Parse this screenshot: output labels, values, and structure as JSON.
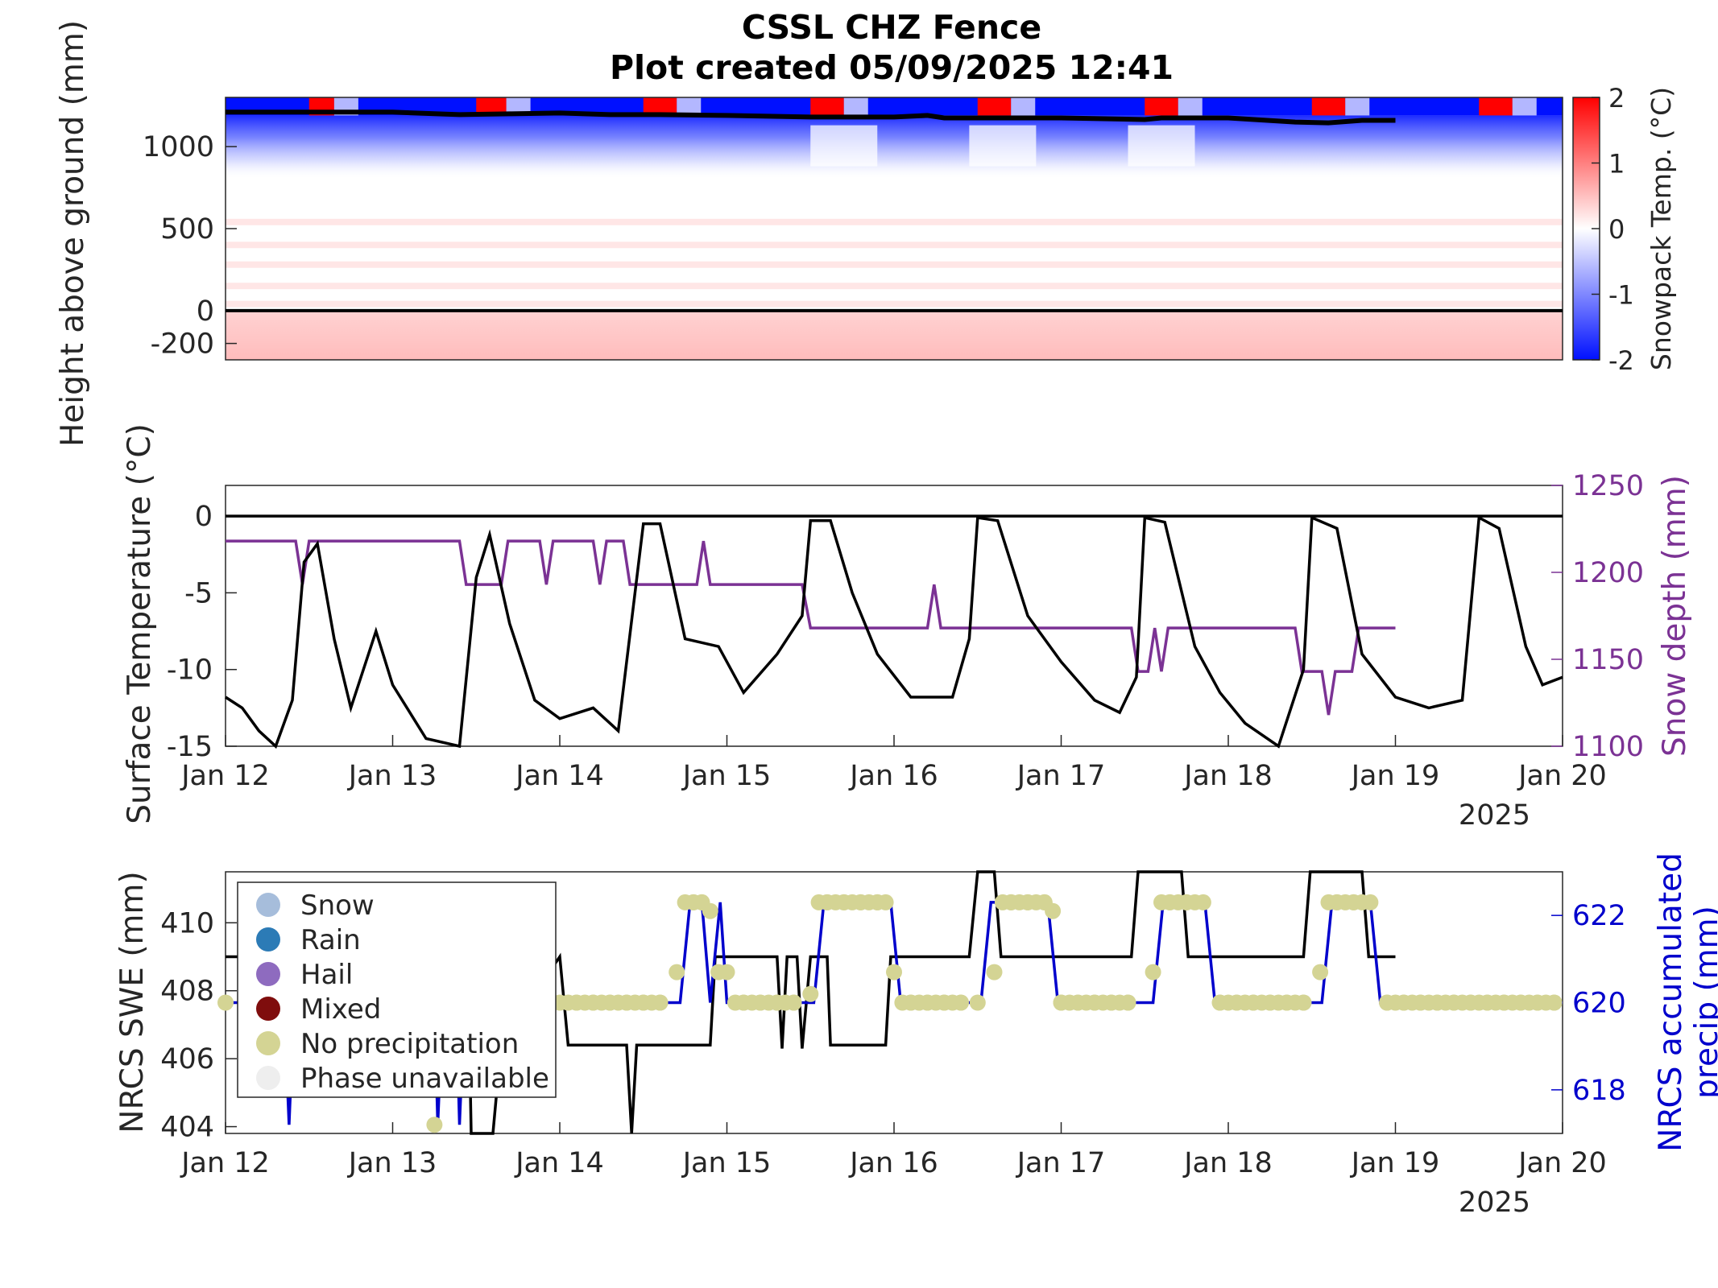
{
  "title": {
    "line1": "CSSL CHZ Fence",
    "line2": "Plot created 05/09/2025 12:41"
  },
  "colors": {
    "surface_temp": "#000000",
    "snow_depth": "#7b3294",
    "swe": "#000000",
    "accum_precip": "#0000cc",
    "accum_precip_label": "#0000cc",
    "no_precip": "#d4d494",
    "snow": "#a6bddb",
    "rain": "#2c7bb6",
    "hail": "#8e6bbf",
    "mixed": "#7f0d0d",
    "unavailable": "#eeeeee",
    "cold": "#0010ff",
    "warm": "#ff0000"
  },
  "chart_data": [
    {
      "type": "heatmap",
      "ylabel": "Height above ground (mm)",
      "y_ticks": [
        1000,
        500,
        0,
        -200
      ],
      "ylim": [
        -300,
        1300
      ],
      "x_ticks": [
        "Jan 12",
        "Jan 13",
        "Jan 14",
        "Jan 15",
        "Jan 16",
        "Jan 17",
        "Jan 18",
        "Jan 19",
        "Jan 20"
      ],
      "xlim_days": [
        12,
        20
      ],
      "colorbar": {
        "label": "Snowpack Temp. (°C)",
        "ticks": [
          2,
          1,
          0,
          -1,
          -2
        ],
        "range": [
          -2,
          2
        ]
      },
      "snow_surface_mm": [
        [
          12.0,
          1210
        ],
        [
          12.5,
          1210
        ],
        [
          13.0,
          1210
        ],
        [
          13.4,
          1195
        ],
        [
          13.7,
          1200
        ],
        [
          14.0,
          1205
        ],
        [
          14.3,
          1195
        ],
        [
          14.6,
          1195
        ],
        [
          15.0,
          1190
        ],
        [
          15.5,
          1180
        ],
        [
          16.0,
          1180
        ],
        [
          16.2,
          1190
        ],
        [
          16.3,
          1175
        ],
        [
          17.0,
          1175
        ],
        [
          17.5,
          1165
        ],
        [
          17.6,
          1175
        ],
        [
          18.0,
          1175
        ],
        [
          18.4,
          1150
        ],
        [
          18.6,
          1145
        ],
        [
          18.8,
          1160
        ],
        [
          19.0,
          1160
        ]
      ],
      "ground_line_mm": 0
    },
    {
      "type": "line",
      "ylabel": "Surface Temperature (°C)",
      "y2label": "Snow depth (mm)",
      "y_ticks": [
        0,
        -5,
        -10,
        -15
      ],
      "ylim": [
        -15,
        2
      ],
      "y2_ticks": [
        1250,
        1200,
        1150,
        1100
      ],
      "y2lim": [
        1100,
        1250
      ],
      "x_ticks": [
        "Jan 12",
        "Jan 13",
        "Jan 14",
        "Jan 15",
        "Jan 16",
        "Jan 17",
        "Jan 18",
        "Jan 19",
        "Jan 20"
      ],
      "x_year": "2025",
      "series_surface_temp": [
        [
          12.0,
          -11.8
        ],
        [
          12.1,
          -12.5
        ],
        [
          12.2,
          -14.0
        ],
        [
          12.3,
          -15.0
        ],
        [
          12.4,
          -12.0
        ],
        [
          12.47,
          -3.0
        ],
        [
          12.55,
          -1.8
        ],
        [
          12.65,
          -8.0
        ],
        [
          12.75,
          -12.5
        ],
        [
          12.9,
          -7.5
        ],
        [
          13.0,
          -11.0
        ],
        [
          13.2,
          -14.5
        ],
        [
          13.4,
          -15.0
        ],
        [
          13.5,
          -4.0
        ],
        [
          13.58,
          -1.2
        ],
        [
          13.7,
          -7.0
        ],
        [
          13.85,
          -12.0
        ],
        [
          14.0,
          -13.2
        ],
        [
          14.2,
          -12.5
        ],
        [
          14.35,
          -14.0
        ],
        [
          14.5,
          -0.5
        ],
        [
          14.6,
          -0.5
        ],
        [
          14.75,
          -8.0
        ],
        [
          14.95,
          -8.5
        ],
        [
          15.1,
          -11.5
        ],
        [
          15.3,
          -9.0
        ],
        [
          15.45,
          -6.5
        ],
        [
          15.5,
          -0.3
        ],
        [
          15.62,
          -0.3
        ],
        [
          15.75,
          -5.0
        ],
        [
          15.9,
          -9.0
        ],
        [
          16.1,
          -11.8
        ],
        [
          16.35,
          -11.8
        ],
        [
          16.45,
          -8.0
        ],
        [
          16.5,
          -0.1
        ],
        [
          16.62,
          -0.3
        ],
        [
          16.8,
          -6.5
        ],
        [
          17.0,
          -9.5
        ],
        [
          17.2,
          -12.0
        ],
        [
          17.35,
          -12.8
        ],
        [
          17.45,
          -10.5
        ],
        [
          17.5,
          -0.1
        ],
        [
          17.62,
          -0.4
        ],
        [
          17.8,
          -8.5
        ],
        [
          17.95,
          -11.5
        ],
        [
          18.1,
          -13.5
        ],
        [
          18.3,
          -15.0
        ],
        [
          18.45,
          -10.0
        ],
        [
          18.5,
          -0.1
        ],
        [
          18.65,
          -0.8
        ],
        [
          18.8,
          -9.0
        ],
        [
          19.0,
          -11.8
        ],
        [
          19.2,
          -12.5
        ],
        [
          19.4,
          -12.0
        ],
        [
          19.5,
          -0.1
        ],
        [
          19.62,
          -0.8
        ],
        [
          19.78,
          -8.5
        ],
        [
          19.88,
          -11.0
        ],
        [
          20.0,
          -10.5
        ]
      ],
      "series_snow_depth": [
        [
          12.0,
          1218
        ],
        [
          12.42,
          1218
        ],
        [
          12.46,
          1193
        ],
        [
          12.5,
          1218
        ],
        [
          13.4,
          1218
        ],
        [
          13.44,
          1193
        ],
        [
          13.65,
          1193
        ],
        [
          13.69,
          1218
        ],
        [
          13.88,
          1218
        ],
        [
          13.92,
          1193
        ],
        [
          13.96,
          1218
        ],
        [
          14.2,
          1218
        ],
        [
          14.24,
          1193
        ],
        [
          14.28,
          1218
        ],
        [
          14.38,
          1218
        ],
        [
          14.42,
          1193
        ],
        [
          14.82,
          1193
        ],
        [
          14.86,
          1218
        ],
        [
          14.9,
          1193
        ],
        [
          15.45,
          1193
        ],
        [
          15.5,
          1168
        ],
        [
          16.2,
          1168
        ],
        [
          16.24,
          1193
        ],
        [
          16.28,
          1168
        ],
        [
          17.42,
          1168
        ],
        [
          17.46,
          1143
        ],
        [
          17.52,
          1143
        ],
        [
          17.56,
          1168
        ],
        [
          17.6,
          1143
        ],
        [
          17.64,
          1168
        ],
        [
          18.4,
          1168
        ],
        [
          18.44,
          1143
        ],
        [
          18.56,
          1143
        ],
        [
          18.6,
          1118
        ],
        [
          18.64,
          1143
        ],
        [
          18.74,
          1143
        ],
        [
          18.78,
          1168
        ],
        [
          19.0,
          1168
        ]
      ],
      "zero_line": 0
    },
    {
      "type": "line",
      "ylabel": "NRCS SWE (mm)",
      "y2label_line1": "NRCS accumulated",
      "y2label_line2": "precip (mm)",
      "y_ticks": [
        410,
        408,
        406,
        404
      ],
      "ylim": [
        403.8,
        411.5
      ],
      "y2_ticks": [
        622,
        620,
        618
      ],
      "y2lim": [
        617,
        623
      ],
      "x_ticks": [
        "Jan 12",
        "Jan 13",
        "Jan 14",
        "Jan 15",
        "Jan 16",
        "Jan 17",
        "Jan 18",
        "Jan 19",
        "Jan 20"
      ],
      "x_year": "2025",
      "legend": {
        "placement": "top-left",
        "entries": [
          "Snow",
          "Rain",
          "Hail",
          "Mixed",
          "No precipitation",
          "Phase unavailable"
        ]
      },
      "series_swe": [
        [
          12.0,
          409
        ],
        [
          13.45,
          409
        ],
        [
          13.47,
          403.8
        ],
        [
          13.6,
          403.8
        ],
        [
          13.65,
          406.5
        ],
        [
          14.0,
          409
        ],
        [
          14.05,
          406.4
        ],
        [
          14.4,
          406.4
        ],
        [
          14.43,
          403.8
        ],
        [
          14.46,
          406.4
        ],
        [
          14.9,
          406.4
        ],
        [
          14.93,
          409
        ],
        [
          15.3,
          409
        ],
        [
          15.33,
          406.3
        ],
        [
          15.36,
          409
        ],
        [
          15.42,
          409
        ],
        [
          15.45,
          406.3
        ],
        [
          15.5,
          409
        ],
        [
          15.6,
          409
        ],
        [
          15.62,
          406.4
        ],
        [
          15.95,
          406.4
        ],
        [
          15.98,
          409
        ],
        [
          16.45,
          409
        ],
        [
          16.5,
          411.5
        ],
        [
          16.6,
          411.5
        ],
        [
          16.64,
          409
        ],
        [
          17.42,
          409
        ],
        [
          17.46,
          411.5
        ],
        [
          17.72,
          411.5
        ],
        [
          17.76,
          409
        ],
        [
          18.45,
          409
        ],
        [
          18.49,
          411.5
        ],
        [
          18.8,
          411.5
        ],
        [
          18.84,
          409
        ],
        [
          19.0,
          409
        ]
      ],
      "series_accum_precip": [
        [
          12.0,
          620
        ],
        [
          12.35,
          620
        ],
        [
          12.38,
          617.2
        ],
        [
          12.41,
          620
        ],
        [
          13.25,
          620
        ],
        [
          13.27,
          617.2
        ],
        [
          13.3,
          620
        ],
        [
          13.38,
          620
        ],
        [
          13.4,
          617.2
        ],
        [
          13.43,
          620
        ],
        [
          14.72,
          620
        ],
        [
          14.78,
          622.3
        ],
        [
          14.85,
          622.3
        ],
        [
          14.9,
          620
        ],
        [
          14.96,
          622.3
        ],
        [
          15.0,
          620
        ],
        [
          15.52,
          620
        ],
        [
          15.58,
          622.3
        ],
        [
          15.98,
          622.3
        ],
        [
          16.04,
          620
        ],
        [
          16.52,
          620
        ],
        [
          16.58,
          622.3
        ],
        [
          16.92,
          622.3
        ],
        [
          16.98,
          620
        ],
        [
          17.55,
          620
        ],
        [
          17.61,
          622.3
        ],
        [
          17.86,
          622.3
        ],
        [
          17.92,
          620
        ],
        [
          18.56,
          620
        ],
        [
          18.62,
          622.3
        ],
        [
          18.85,
          622.3
        ],
        [
          18.91,
          620
        ],
        [
          20.0,
          620
        ]
      ],
      "no_precip_markers": [
        [
          12.0,
          620
        ],
        [
          14.0,
          620
        ],
        [
          14.1,
          620
        ],
        [
          14.2,
          620
        ],
        [
          14.3,
          620
        ],
        [
          14.4,
          620
        ],
        [
          14.5,
          620
        ],
        [
          14.6,
          620
        ],
        [
          14.7,
          620.7
        ],
        [
          14.8,
          622.3
        ],
        [
          14.85,
          622.3
        ],
        [
          14.9,
          622.1
        ],
        [
          14.95,
          620.7
        ],
        [
          15.0,
          620.7
        ],
        [
          15.1,
          620
        ],
        [
          15.2,
          620
        ],
        [
          15.3,
          620
        ],
        [
          15.4,
          620
        ],
        [
          15.5,
          620.2
        ],
        [
          15.6,
          622.3
        ],
        [
          15.7,
          622.3
        ],
        [
          15.8,
          622.3
        ],
        [
          15.9,
          622.3
        ],
        [
          16.0,
          620.7
        ],
        [
          16.1,
          620
        ],
        [
          16.2,
          620
        ],
        [
          16.3,
          620
        ],
        [
          16.4,
          620
        ],
        [
          16.5,
          620
        ],
        [
          16.6,
          620.7
        ],
        [
          16.7,
          622.3
        ],
        [
          16.8,
          622.3
        ],
        [
          16.9,
          622.3
        ],
        [
          16.95,
          622.1
        ],
        [
          17.0,
          620
        ],
        [
          17.1,
          620
        ],
        [
          17.2,
          620
        ],
        [
          17.3,
          620
        ],
        [
          17.4,
          620
        ],
        [
          17.55,
          620.7
        ],
        [
          17.65,
          622.3
        ],
        [
          17.75,
          622.3
        ],
        [
          17.85,
          622.3
        ],
        [
          17.95,
          620
        ],
        [
          18.05,
          620
        ],
        [
          18.15,
          620
        ],
        [
          18.25,
          620
        ],
        [
          18.35,
          620
        ],
        [
          18.45,
          620
        ],
        [
          18.55,
          620.7
        ],
        [
          18.65,
          622.3
        ],
        [
          18.75,
          622.3
        ],
        [
          18.85,
          622.3
        ],
        [
          18.95,
          620
        ],
        [
          19.05,
          620
        ],
        [
          19.15,
          620
        ],
        [
          19.25,
          620
        ],
        [
          19.35,
          620
        ],
        [
          19.45,
          620
        ],
        [
          19.55,
          620
        ],
        [
          19.65,
          620
        ],
        [
          19.75,
          620
        ],
        [
          19.85,
          620
        ],
        [
          19.95,
          620
        ],
        [
          13.25,
          617.2
        ]
      ]
    }
  ]
}
